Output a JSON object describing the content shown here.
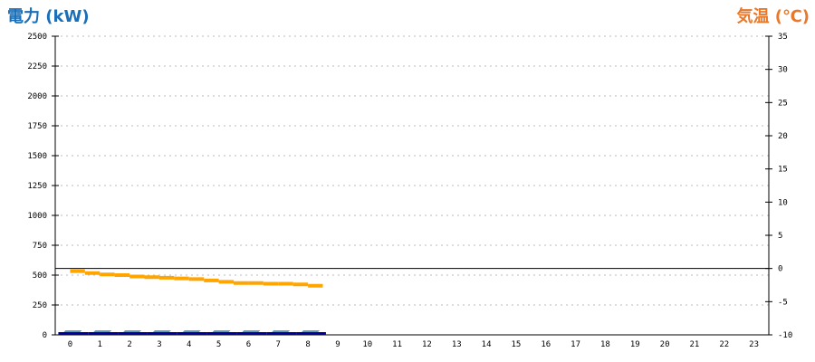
{
  "chart_data": {
    "type": "bar+line",
    "left_axis": {
      "label": "電力 (kW)",
      "range": [
        0,
        2500
      ],
      "ticks": [
        0,
        250,
        500,
        750,
        1000,
        1250,
        1500,
        1750,
        2000,
        2250,
        2500
      ],
      "color": "#1a6fb8"
    },
    "right_axis": {
      "label": "気温 (℃)",
      "range": [
        -10,
        35
      ],
      "ticks": [
        -10,
        -5,
        0,
        5,
        10,
        15,
        20,
        25,
        30,
        35
      ],
      "color": "#e8782a"
    },
    "x_ticks": [
      "0",
      "1",
      "2",
      "3",
      "4",
      "5",
      "6",
      "7",
      "8",
      "9",
      "10",
      "11",
      "12",
      "13",
      "14",
      "15",
      "16",
      "17",
      "18",
      "19",
      "20",
      "21",
      "22",
      "23"
    ],
    "grid": true,
    "power": {
      "hours": [
        0,
        1,
        2,
        3,
        4,
        5,
        6,
        7,
        8
      ],
      "values": [
        0,
        0,
        0,
        0,
        0,
        0,
        0,
        0,
        0
      ],
      "color": "#000099",
      "top_color": "#5b9cc0"
    },
    "temperature": {
      "hours": [
        0,
        0.5,
        1,
        1.5,
        2,
        2.5,
        3,
        3.5,
        4,
        4.5,
        5,
        5.5,
        6,
        6.5,
        7,
        7.5,
        8
      ],
      "values": [
        -0.4,
        -0.7,
        -0.9,
        -1.0,
        -1.2,
        -1.3,
        -1.4,
        -1.5,
        -1.6,
        -1.8,
        -2.0,
        -2.2,
        -2.2,
        -2.3,
        -2.3,
        -2.4,
        -2.6
      ],
      "color": "#ffa500"
    }
  }
}
